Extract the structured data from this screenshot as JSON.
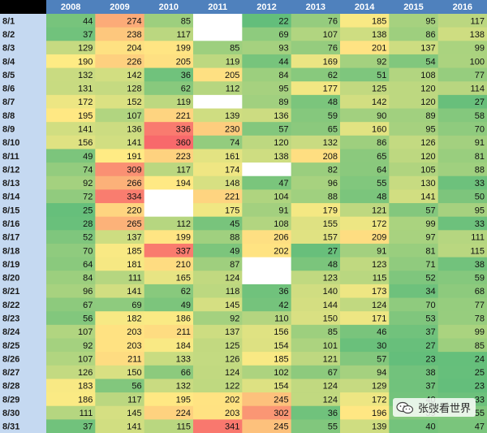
{
  "chart_data": {
    "type": "heatmap",
    "columns": [
      "2008",
      "2009",
      "2010",
      "2011",
      "2012",
      "2013",
      "2014",
      "2015",
      "2016"
    ],
    "rows": [
      "8/1",
      "8/2",
      "8/3",
      "8/4",
      "8/5",
      "8/6",
      "8/7",
      "8/8",
      "8/9",
      "8/10",
      "8/11",
      "8/12",
      "8/13",
      "8/14",
      "8/15",
      "8/16",
      "8/17",
      "8/18",
      "8/19",
      "8/20",
      "8/21",
      "8/22",
      "8/23",
      "8/24",
      "8/25",
      "8/26",
      "8/27",
      "8/28",
      "8/29",
      "8/30",
      "8/31"
    ],
    "values": [
      [
        44,
        274,
        85,
        null,
        22,
        76,
        185,
        95,
        117
      ],
      [
        37,
        238,
        117,
        null,
        69,
        107,
        138,
        86,
        138
      ],
      [
        129,
        204,
        199,
        85,
        93,
        76,
        201,
        137,
        99
      ],
      [
        190,
        226,
        205,
        119,
        44,
        169,
        92,
        54,
        100
      ],
      [
        132,
        142,
        36,
        205,
        84,
        62,
        51,
        108,
        77
      ],
      [
        131,
        128,
        62,
        112,
        95,
        177,
        125,
        120,
        114
      ],
      [
        172,
        152,
        119,
        null,
        89,
        48,
        142,
        120,
        27
      ],
      [
        195,
        107,
        221,
        139,
        136,
        59,
        90,
        89,
        58
      ],
      [
        141,
        136,
        336,
        230,
        57,
        65,
        160,
        95,
        70
      ],
      [
        156,
        141,
        360,
        74,
        120,
        132,
        86,
        126,
        91
      ],
      [
        49,
        191,
        223,
        161,
        138,
        208,
        65,
        120,
        81
      ],
      [
        74,
        309,
        117,
        174,
        null,
        82,
        64,
        105,
        88
      ],
      [
        92,
        266,
        194,
        148,
        47,
        96,
        55,
        130,
        33
      ],
      [
        72,
        334,
        null,
        221,
        104,
        88,
        48,
        141,
        50
      ],
      [
        25,
        220,
        null,
        175,
        91,
        179,
        121,
        57,
        95
      ],
      [
        28,
        265,
        112,
        45,
        108,
        155,
        172,
        99,
        33
      ],
      [
        52,
        137,
        199,
        88,
        206,
        157,
        209,
        97,
        111
      ],
      [
        70,
        185,
        337,
        49,
        202,
        27,
        91,
        81,
        115
      ],
      [
        64,
        181,
        210,
        87,
        null,
        48,
        123,
        71,
        38
      ],
      [
        84,
        111,
        165,
        124,
        null,
        123,
        115,
        52,
        59
      ],
      [
        96,
        141,
        62,
        118,
        36,
        140,
        173,
        34,
        68
      ],
      [
        67,
        69,
        49,
        145,
        42,
        144,
        124,
        70,
        77
      ],
      [
        56,
        182,
        186,
        92,
        110,
        150,
        171,
        53,
        78
      ],
      [
        107,
        203,
        211,
        137,
        156,
        85,
        46,
        37,
        99
      ],
      [
        92,
        203,
        184,
        125,
        154,
        101,
        30,
        27,
        85
      ],
      [
        107,
        211,
        133,
        126,
        185,
        121,
        57,
        23,
        24
      ],
      [
        126,
        150,
        66,
        124,
        102,
        67,
        94,
        38,
        25
      ],
      [
        183,
        56,
        132,
        122,
        154,
        124,
        129,
        37,
        23
      ],
      [
        186,
        117,
        195,
        202,
        245,
        124,
        172,
        40,
        33
      ],
      [
        111,
        145,
        224,
        203,
        302,
        36,
        196,
        59,
        55
      ],
      [
        37,
        141,
        115,
        341,
        245,
        55,
        139,
        40,
        47
      ]
    ],
    "color_scale": {
      "low": "#63be7b",
      "mid": "#ffeb84",
      "high": "#f8696b",
      "empty": "#ffffff"
    },
    "value_range": [
      22,
      360
    ],
    "header_bg": "#4f81bd",
    "label_col_bg": "#c5d9f1"
  },
  "watermark": {
    "text": "张弢看世界",
    "icon": "wechat-icon"
  }
}
